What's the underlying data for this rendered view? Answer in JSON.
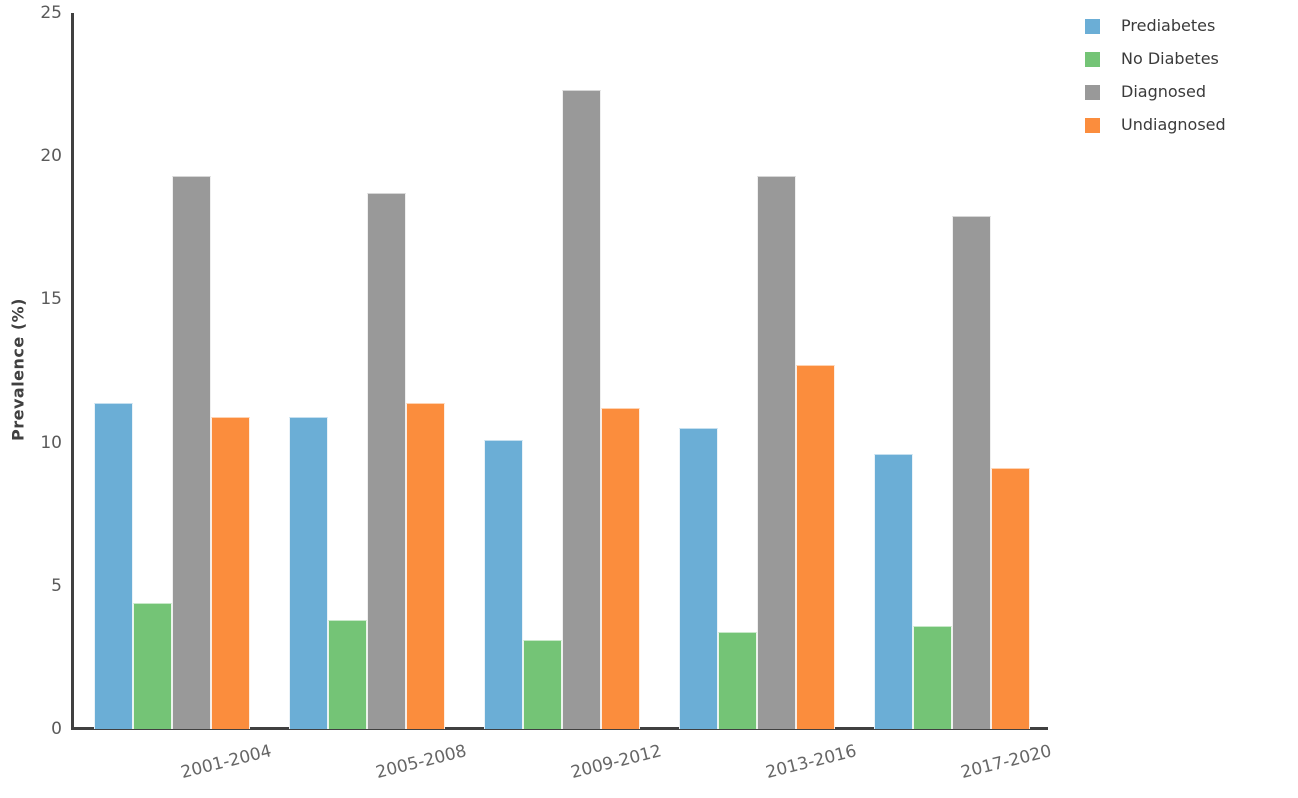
{
  "chart_data": {
    "type": "bar",
    "title": "",
    "xlabel": "",
    "ylabel": "Prevalence (%)",
    "ylim": [
      0,
      25
    ],
    "yticks": [
      0,
      5,
      10,
      15,
      20,
      25
    ],
    "grid": false,
    "legend_position": "top-right",
    "categories": [
      "2001-2004",
      "2005-2008",
      "2009-2012",
      "2013-2016",
      "2017-2020"
    ],
    "series": [
      {
        "name": "Prediabetes",
        "color": "#6baed6",
        "values": [
          11.4,
          10.9,
          10.1,
          10.5,
          9.6
        ]
      },
      {
        "name": "No Diabetes",
        "color": "#74c476",
        "values": [
          4.4,
          3.8,
          3.1,
          3.4,
          3.6
        ]
      },
      {
        "name": "Diagnosed",
        "color": "#999999",
        "values": [
          19.3,
          18.7,
          22.3,
          19.3,
          17.9
        ]
      },
      {
        "name": "Undiagnosed",
        "color": "#fb8d3d",
        "values": [
          10.9,
          11.4,
          11.2,
          12.7,
          9.1
        ]
      }
    ],
    "axis_color": "#404040",
    "tick_label_color": "#5a5a5a",
    "background_color": "#ffffff"
  }
}
